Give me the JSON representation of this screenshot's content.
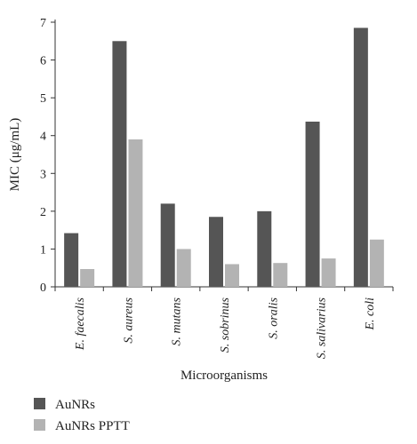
{
  "chart_data": {
    "type": "bar",
    "categories": [
      "E. faecalis",
      "S. aureus",
      "S. mutans",
      "S. sobrinus",
      "S. oralis",
      "S. salivarius",
      "E. coli"
    ],
    "series": [
      {
        "name": "AuNRs",
        "values": [
          1.42,
          6.5,
          2.2,
          1.85,
          2.0,
          4.37,
          6.85
        ],
        "color": "#555555"
      },
      {
        "name": "AuNRs PPTT",
        "values": [
          0.47,
          3.9,
          1.0,
          0.6,
          0.63,
          0.75,
          1.25
        ],
        "color": "#b3b3b3"
      }
    ],
    "xlabel": "Microorganisms",
    "ylabel": "MIC (μg/mL)",
    "ylim": [
      0,
      7
    ],
    "yticks": [
      0,
      1,
      2,
      3,
      4,
      5,
      6,
      7
    ],
    "grid": false,
    "legend": "bottom-left"
  }
}
